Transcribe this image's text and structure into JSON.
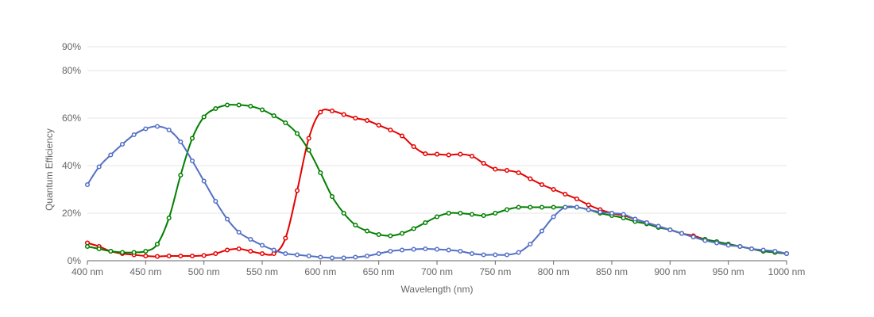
{
  "chart_data": {
    "type": "line",
    "xlabel": "Wavelength (nm)",
    "ylabel": "Quantum Efficiency",
    "xlim": [
      400,
      1000
    ],
    "ylim": [
      0,
      90
    ],
    "x_ticks": [
      {
        "value": 400,
        "label": "400 nm"
      },
      {
        "value": 450,
        "label": "450 nm"
      },
      {
        "value": 500,
        "label": "500 nm"
      },
      {
        "value": 550,
        "label": "550 nm"
      },
      {
        "value": 600,
        "label": "600 nm"
      },
      {
        "value": 650,
        "label": "650 nm"
      },
      {
        "value": 700,
        "label": "700 nm"
      },
      {
        "value": 750,
        "label": "750 nm"
      },
      {
        "value": 800,
        "label": "800 nm"
      },
      {
        "value": 850,
        "label": "850 nm"
      },
      {
        "value": 900,
        "label": "900 nm"
      },
      {
        "value": 950,
        "label": "950 nm"
      },
      {
        "value": 1000,
        "label": "1000 nm"
      }
    ],
    "y_ticks": [
      {
        "value": 0,
        "label": "0%"
      },
      {
        "value": 20,
        "label": "20%"
      },
      {
        "value": 40,
        "label": "40%"
      },
      {
        "value": 60,
        "label": "60%"
      },
      {
        "value": 80,
        "label": "80%"
      },
      {
        "value": 90,
        "label": "90%"
      }
    ],
    "grid": true,
    "x": [
      400,
      410,
      420,
      430,
      440,
      450,
      460,
      470,
      480,
      490,
      500,
      510,
      520,
      530,
      540,
      550,
      560,
      570,
      580,
      590,
      600,
      610,
      620,
      630,
      640,
      650,
      660,
      670,
      680,
      690,
      700,
      710,
      720,
      730,
      740,
      750,
      760,
      770,
      780,
      790,
      800,
      810,
      820,
      830,
      840,
      850,
      860,
      870,
      880,
      890,
      900,
      910,
      920,
      930,
      940,
      950,
      960,
      970,
      980,
      990,
      1000
    ],
    "series": [
      {
        "color": "#e60000",
        "values": [
          7.5,
          6,
          4,
          3,
          2.5,
          2,
          1.8,
          2,
          2,
          2,
          2.2,
          3,
          4.5,
          5,
          4,
          3,
          3,
          9.5,
          29.5,
          51.5,
          62.5,
          63,
          61.5,
          60,
          59,
          57,
          55,
          52.5,
          48,
          45,
          44.8,
          44.5,
          44.8,
          44,
          41,
          38.5,
          38,
          37,
          34.5,
          32,
          30,
          28,
          26,
          23.5,
          21.5,
          20,
          19,
          17.5,
          16,
          14.5,
          13,
          11.5,
          10.5,
          9,
          8,
          7,
          6,
          5,
          4,
          3.5,
          3
        ]
      },
      {
        "color": "#008000",
        "values": [
          6,
          5,
          4,
          3.5,
          3.5,
          4,
          7,
          18,
          36,
          51.5,
          60.5,
          64,
          65.5,
          65.5,
          65,
          63.5,
          61,
          58,
          53.5,
          46.5,
          37,
          27,
          20,
          15,
          12.5,
          11,
          10.5,
          11.5,
          13.5,
          16,
          18.5,
          20,
          20,
          19.5,
          19,
          20,
          21.5,
          22.5,
          22.5,
          22.5,
          22.5,
          22.5,
          22.5,
          21.5,
          20,
          19,
          18,
          16.5,
          15.5,
          14,
          13,
          11.5,
          10,
          9,
          8,
          7,
          6,
          5,
          4,
          3.5,
          3
        ]
      },
      {
        "color": "#5470c6",
        "values": [
          32,
          39.5,
          44.5,
          49,
          53,
          55.5,
          56.5,
          55,
          50,
          42,
          33.5,
          25,
          17.5,
          12,
          9,
          6.5,
          4.5,
          3,
          2.5,
          2,
          1.5,
          1.2,
          1.2,
          1.5,
          2,
          3,
          4,
          4.5,
          4.8,
          5,
          4.8,
          4.5,
          4,
          3,
          2.5,
          2.5,
          2.5,
          3.5,
          7,
          12.5,
          18.5,
          22.5,
          22.5,
          21.5,
          20.5,
          20,
          19.5,
          17.5,
          16,
          14.5,
          13,
          11.5,
          10,
          8.5,
          7.5,
          6.5,
          6,
          5,
          4.5,
          4,
          3
        ]
      }
    ]
  }
}
